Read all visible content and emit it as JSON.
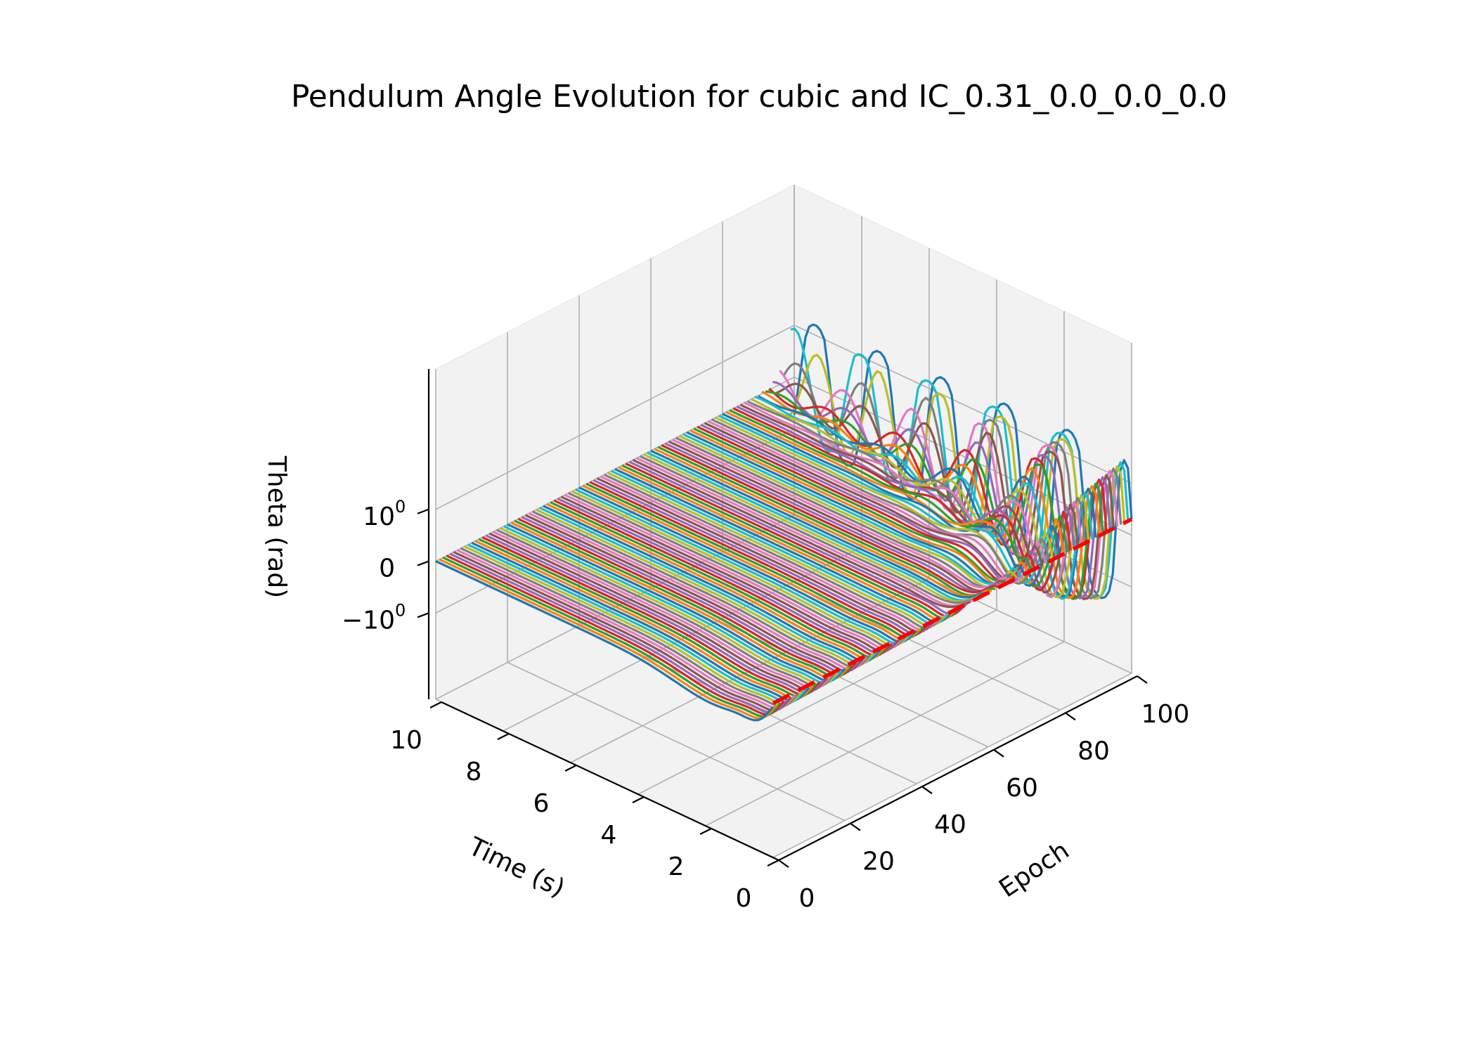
{
  "chart_data": {
    "type": "line",
    "projection": "3d",
    "title": "Pendulum Angle Evolution for cubic and IC_0.31_0.0_0.0_0.0",
    "xlabel": "Time (s)",
    "ylabel": "Epoch",
    "zlabel": "Theta (rad)",
    "zscale": "symlog",
    "xlim": [
      0,
      10
    ],
    "ylim": [
      0,
      100
    ],
    "x_ticks": [
      {
        "value": 0,
        "label": "0"
      },
      {
        "value": 2,
        "label": "2"
      },
      {
        "value": 4,
        "label": "4"
      },
      {
        "value": 6,
        "label": "6"
      },
      {
        "value": 8,
        "label": "8"
      },
      {
        "value": 10,
        "label": "10"
      }
    ],
    "y_ticks": [
      {
        "value": 0,
        "label": "0"
      },
      {
        "value": 20,
        "label": "20"
      },
      {
        "value": 40,
        "label": "40"
      },
      {
        "value": 60,
        "label": "60"
      },
      {
        "value": 80,
        "label": "80"
      },
      {
        "value": 100,
        "label": "100"
      }
    ],
    "z_ticks": [
      {
        "value": 1,
        "label": "10",
        "exponent": "0"
      },
      {
        "value": 0,
        "label": "0",
        "exponent": ""
      },
      {
        "value": -1,
        "label": "−10",
        "exponent": "0"
      }
    ],
    "grid": true,
    "legend": "none",
    "series_palette": [
      "#1f77b4",
      "#ff7f0e",
      "#2ca02c",
      "#d62728",
      "#9467bd",
      "#8c564b",
      "#e377c2",
      "#7f7f7f",
      "#bcbd22",
      "#17becf"
    ],
    "series_description": "One curve per training epoch: predicted theta vs time; early epochs decay to near zero quickly, later epochs oscillate",
    "reference_line": {
      "style": "dashed",
      "color": "#ff0000",
      "time": 0,
      "theta": 0.31,
      "epochs": [
        0,
        100
      ]
    }
  }
}
